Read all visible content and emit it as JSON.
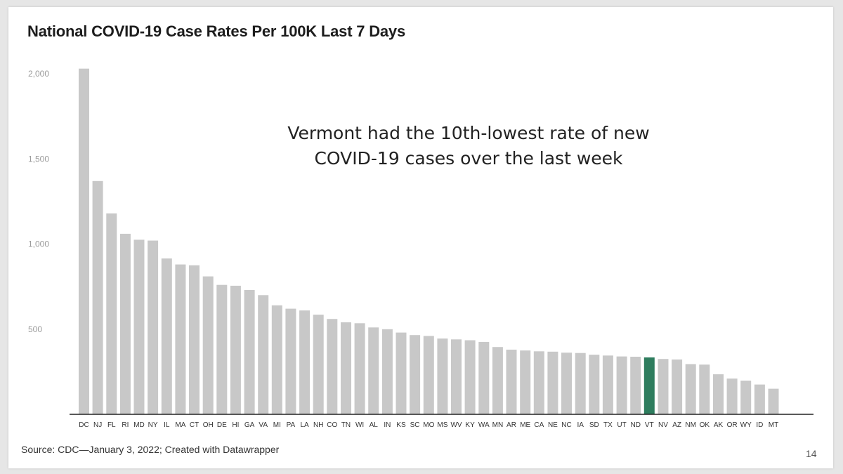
{
  "title": "National COVID-19 Case Rates Per 100K Last 7 Days",
  "annotation": {
    "line1": "Vermont had the 10th-lowest rate of new",
    "line2": "COVID-19 cases over the last week"
  },
  "source": "Source: CDC—January 3, 2022; Created with Datawrapper",
  "page_number": "14",
  "colors": {
    "bar": "#c8c8c8",
    "highlight": "#2e7d5e",
    "axis": "#222222"
  },
  "chart_data": {
    "type": "bar",
    "title": "National COVID-19 Case Rates Per 100K Last 7 Days",
    "xlabel": "",
    "ylabel": "",
    "ylim": [
      0,
      2000
    ],
    "yticks": [
      500,
      1000,
      1500,
      2000
    ],
    "ytick_labels": [
      "500",
      "1,000",
      "1,500",
      "2,000"
    ],
    "grid": false,
    "highlight_category": "VT",
    "categories": [
      "DC",
      "NJ",
      "FL",
      "RI",
      "MD",
      "NY",
      "IL",
      "MA",
      "CT",
      "OH",
      "DE",
      "HI",
      "GA",
      "VA",
      "MI",
      "PA",
      "LA",
      "NH",
      "CO",
      "TN",
      "WI",
      "AL",
      "IN",
      "KS",
      "SC",
      "MO",
      "MS",
      "WV",
      "KY",
      "WA",
      "MN",
      "AR",
      "ME",
      "CA",
      "NE",
      "NC",
      "IA",
      "SD",
      "TX",
      "UT",
      "ND",
      "VT",
      "NV",
      "AZ",
      "NM",
      "OK",
      "AK",
      "OR",
      "WY",
      "ID",
      "MT"
    ],
    "values": [
      2030,
      1370,
      1180,
      1060,
      1025,
      1020,
      915,
      880,
      875,
      810,
      760,
      755,
      730,
      700,
      640,
      620,
      610,
      585,
      560,
      540,
      535,
      510,
      500,
      480,
      465,
      460,
      445,
      440,
      435,
      425,
      395,
      380,
      375,
      370,
      368,
      362,
      360,
      350,
      345,
      340,
      338,
      334,
      325,
      322,
      295,
      292,
      235,
      210,
      198,
      175,
      150
    ]
  }
}
